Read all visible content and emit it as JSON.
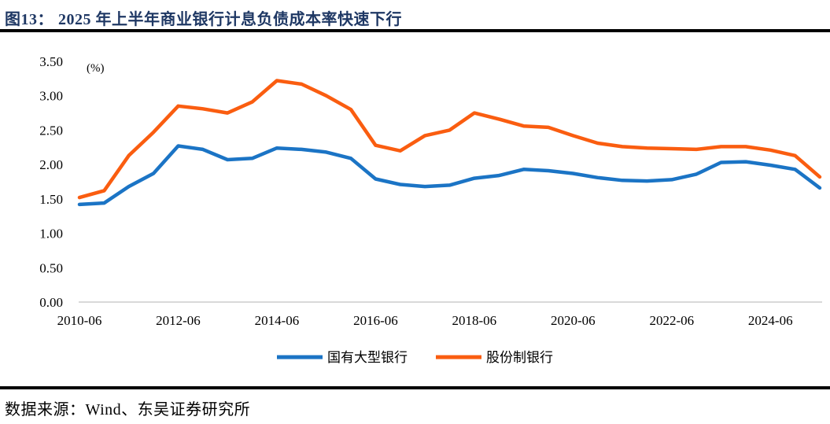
{
  "header": {
    "figure_label": "图13：",
    "title": "2025 年上半年商业银行计息负债成本率快速下行"
  },
  "source": {
    "text": "数据来源：Wind、东吴证券研究所"
  },
  "colors": {
    "title_text": "#1F3864",
    "blue_series": "#1B74C5",
    "orange_series": "#FA5D10",
    "axis_line": "#D9D9D9",
    "tick_text": "#000000",
    "divider": "#000000"
  },
  "chart_data": {
    "type": "line",
    "title": "",
    "unit_label": "(%)",
    "xlabel": "",
    "ylabel": "",
    "ylim": [
      0,
      3.5
    ],
    "y_tick_step": 0.5,
    "y_tick_labels": [
      "0.00",
      "0.50",
      "1.00",
      "1.50",
      "2.00",
      "2.50",
      "3.00",
      "3.50"
    ],
    "grid": false,
    "legend_position": "bottom",
    "x": [
      "2010-06",
      "2010-12",
      "2011-06",
      "2011-12",
      "2012-06",
      "2012-12",
      "2013-06",
      "2013-12",
      "2014-06",
      "2014-12",
      "2015-06",
      "2015-12",
      "2016-06",
      "2016-12",
      "2017-06",
      "2017-12",
      "2018-06",
      "2018-12",
      "2019-06",
      "2019-12",
      "2020-06",
      "2020-12",
      "2021-06",
      "2021-12",
      "2022-06",
      "2022-12",
      "2023-06",
      "2023-12",
      "2024-06",
      "2024-12",
      "2025-06"
    ],
    "x_tick_labels": [
      "2010-06",
      "2012-06",
      "2014-06",
      "2016-06",
      "2018-06",
      "2020-06",
      "2022-06",
      "2024-06"
    ],
    "x_tick_indices": [
      0,
      4,
      8,
      12,
      16,
      20,
      24,
      28
    ],
    "series": [
      {
        "name": "国有大型银行",
        "color": "#1B74C5",
        "values": [
          1.42,
          1.44,
          1.68,
          1.87,
          2.27,
          2.22,
          2.07,
          2.09,
          2.24,
          2.22,
          2.18,
          2.09,
          1.79,
          1.71,
          1.68,
          1.7,
          1.8,
          1.84,
          1.93,
          1.91,
          1.87,
          1.81,
          1.77,
          1.76,
          1.78,
          1.86,
          2.03,
          2.04,
          1.99,
          1.93,
          1.66
        ]
      },
      {
        "name": "股份制银行",
        "color": "#FA5D10",
        "values": [
          1.52,
          1.62,
          2.13,
          2.47,
          2.85,
          2.81,
          2.75,
          2.91,
          3.22,
          3.17,
          3.0,
          2.8,
          2.28,
          2.2,
          2.42,
          2.5,
          2.75,
          2.66,
          2.56,
          2.54,
          2.42,
          2.31,
          2.26,
          2.24,
          2.23,
          2.22,
          2.26,
          2.26,
          2.21,
          2.13,
          1.82
        ]
      }
    ]
  }
}
